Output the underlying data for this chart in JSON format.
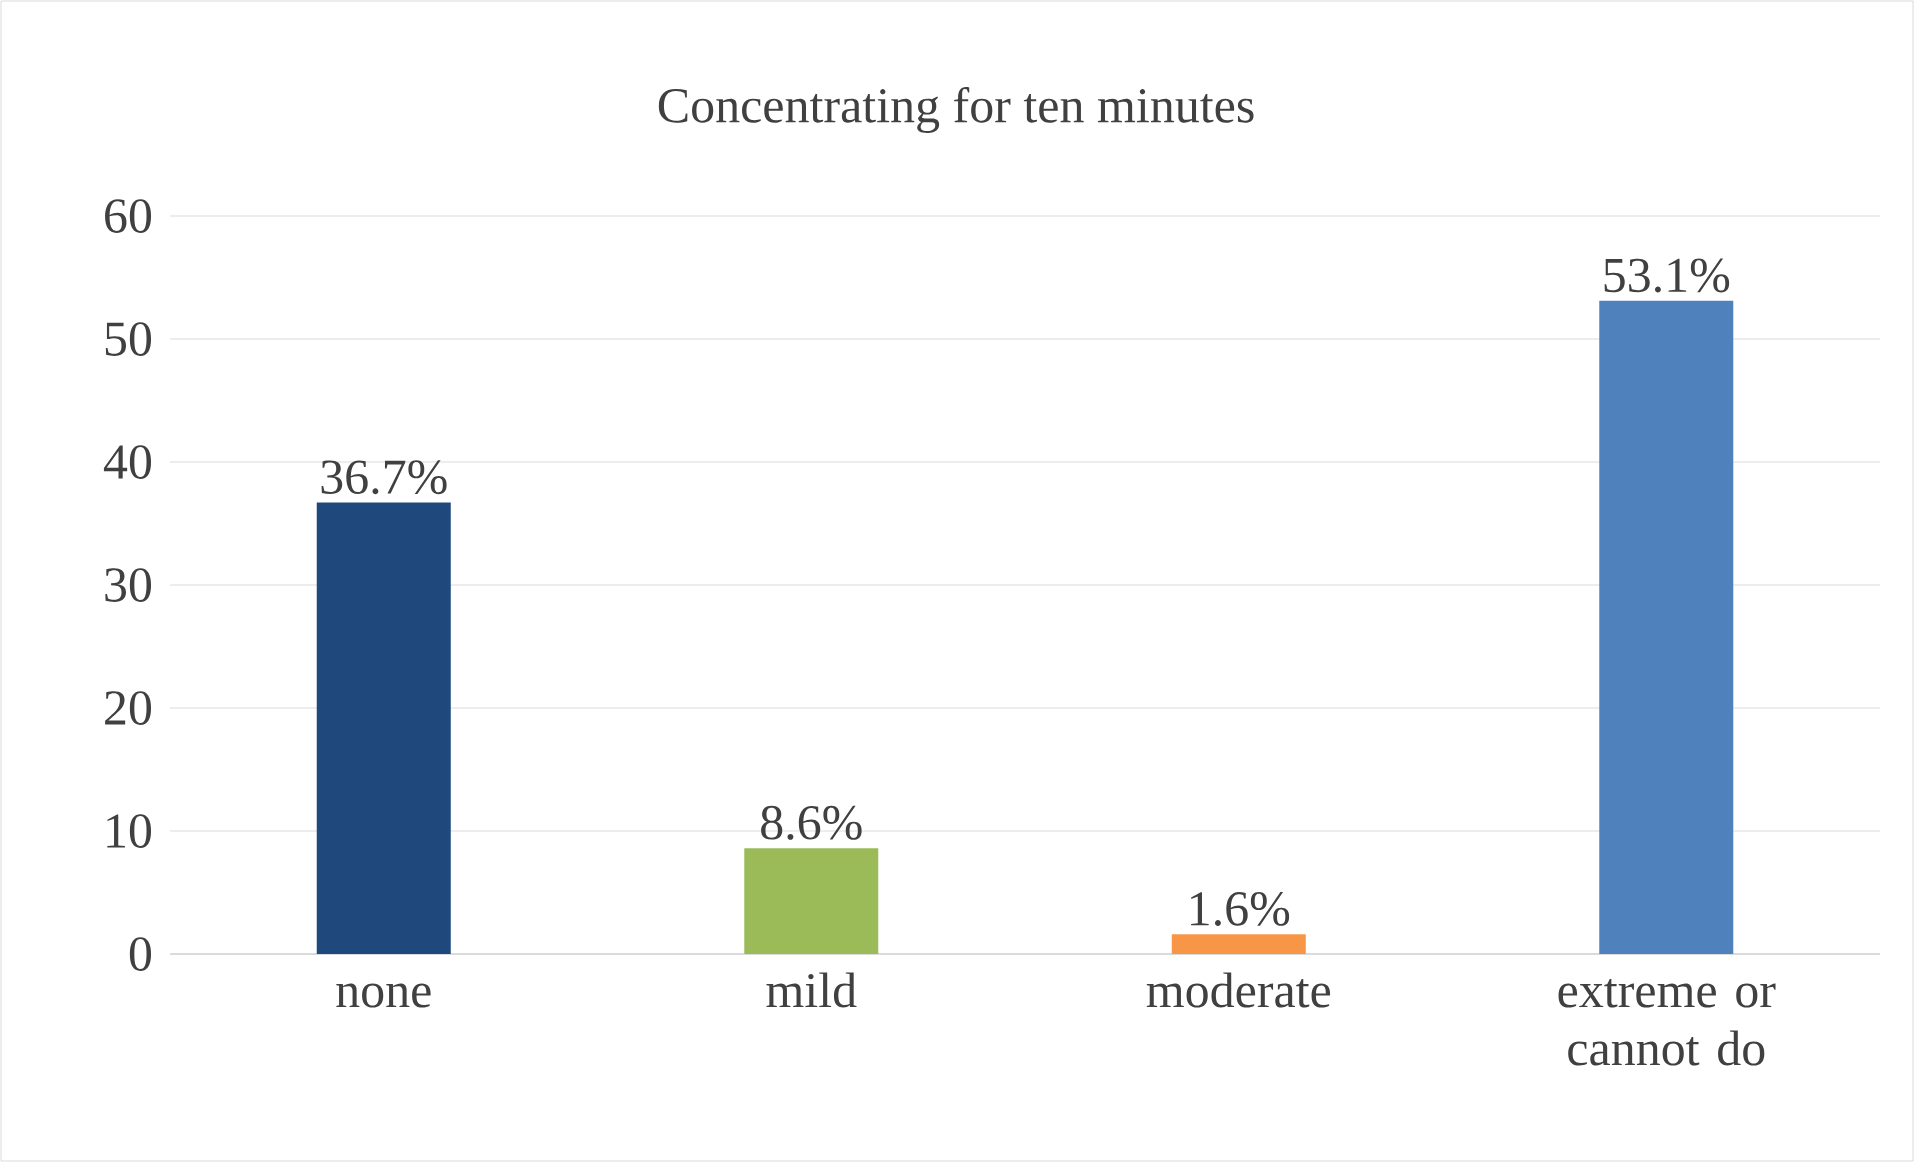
{
  "chart_data": {
    "type": "bar",
    "title": "Concentrating for ten minutes",
    "categories": [
      "none",
      "mild",
      "moderate",
      "extreme or cannot do"
    ],
    "values": [
      36.7,
      8.6,
      1.6,
      53.1
    ],
    "colors": [
      "#1f497d",
      "#9bbb59",
      "#f79646",
      "#4f81bd"
    ],
    "value_labels": [
      "36.7%",
      "8.6%",
      "1.6%",
      "53.1%"
    ],
    "ylim": [
      0,
      60
    ],
    "yticks": [
      0,
      10,
      20,
      30,
      40,
      50,
      60
    ],
    "grid": "y"
  }
}
